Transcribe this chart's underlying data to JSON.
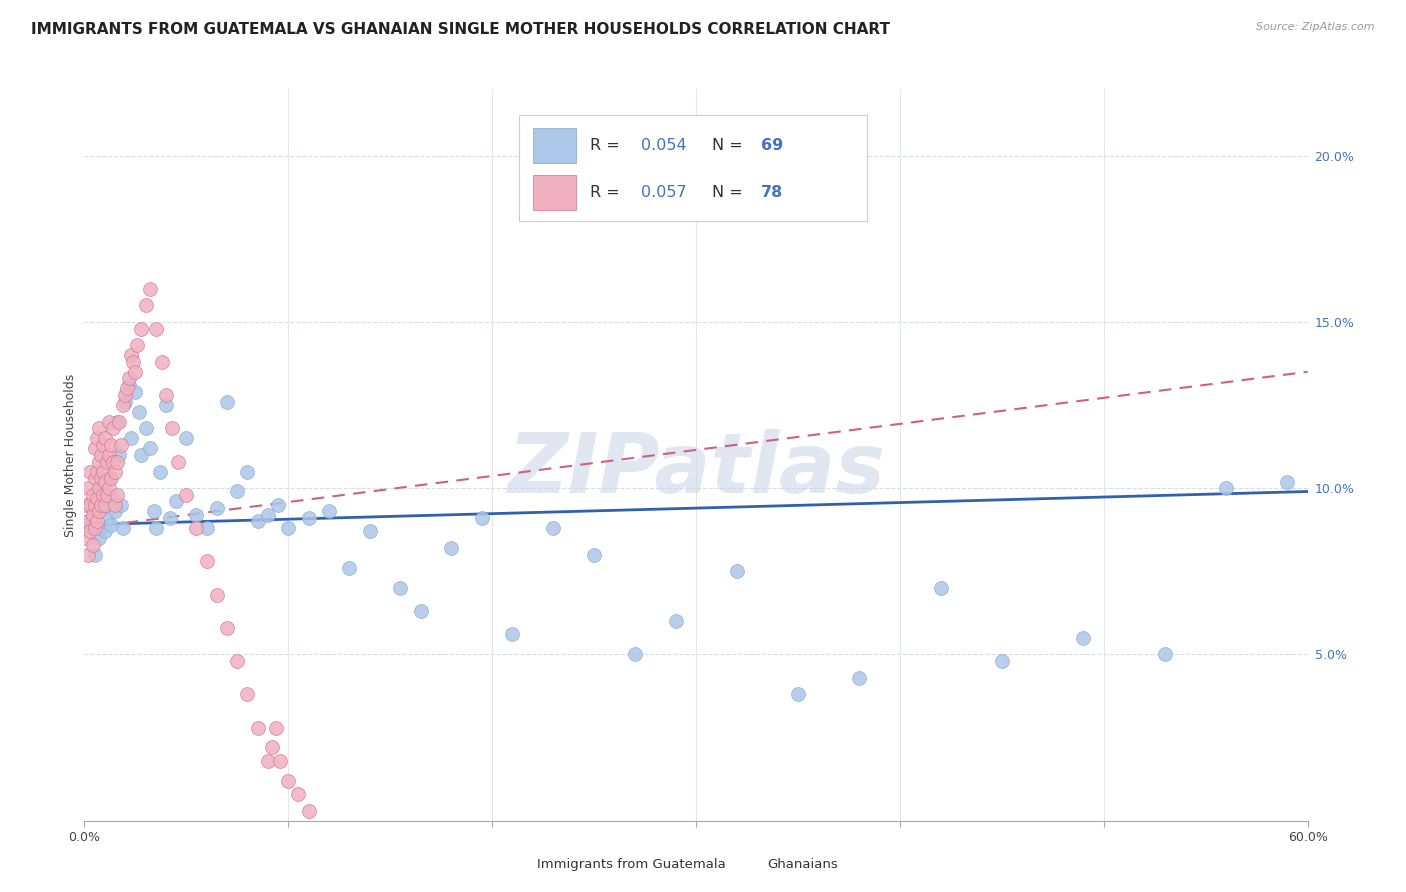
{
  "title": "IMMIGRANTS FROM GUATEMALA VS GHANAIAN SINGLE MOTHER HOUSEHOLDS CORRELATION CHART",
  "source": "Source: ZipAtlas.com",
  "ylabel": "Single Mother Households",
  "watermark": "ZIPatlas",
  "series": [
    {
      "name": "Immigrants from Guatemala",
      "color": "#aec6e8",
      "edge_color": "#7aaad0",
      "R": 0.054,
      "N": 69,
      "line_color": "#3060b0",
      "line_style": "solid",
      "x": [
        0.002,
        0.003,
        0.004,
        0.005,
        0.005,
        0.006,
        0.007,
        0.007,
        0.008,
        0.008,
        0.009,
        0.01,
        0.01,
        0.011,
        0.012,
        0.013,
        0.014,
        0.015,
        0.016,
        0.017,
        0.018,
        0.019,
        0.02,
        0.022,
        0.023,
        0.025,
        0.027,
        0.028,
        0.03,
        0.032,
        0.034,
        0.035,
        0.037,
        0.04,
        0.042,
        0.045,
        0.05,
        0.055,
        0.06,
        0.065,
        0.07,
        0.075,
        0.08,
        0.085,
        0.09,
        0.095,
        0.1,
        0.11,
        0.12,
        0.13,
        0.14,
        0.155,
        0.165,
        0.18,
        0.195,
        0.21,
        0.23,
        0.25,
        0.27,
        0.29,
        0.32,
        0.35,
        0.38,
        0.42,
        0.45,
        0.49,
        0.53,
        0.56,
        0.59
      ],
      "y": [
        0.09,
        0.088,
        0.095,
        0.08,
        0.092,
        0.096,
        0.085,
        0.093,
        0.088,
        0.1,
        0.094,
        0.087,
        0.098,
        0.091,
        0.103,
        0.089,
        0.097,
        0.093,
        0.12,
        0.11,
        0.095,
        0.088,
        0.126,
        0.131,
        0.115,
        0.129,
        0.123,
        0.11,
        0.118,
        0.112,
        0.093,
        0.088,
        0.105,
        0.125,
        0.091,
        0.096,
        0.115,
        0.092,
        0.088,
        0.094,
        0.126,
        0.099,
        0.105,
        0.09,
        0.092,
        0.095,
        0.088,
        0.091,
        0.093,
        0.076,
        0.087,
        0.07,
        0.063,
        0.082,
        0.091,
        0.056,
        0.088,
        0.08,
        0.05,
        0.06,
        0.075,
        0.038,
        0.043,
        0.07,
        0.048,
        0.055,
        0.05,
        0.1,
        0.102
      ]
    },
    {
      "name": "Ghanaians",
      "color": "#f0b0c0",
      "edge_color": "#d07090",
      "R": 0.057,
      "N": 78,
      "line_color": "#d06080",
      "line_style": "dashed",
      "x": [
        0.001,
        0.001,
        0.002,
        0.002,
        0.002,
        0.003,
        0.003,
        0.003,
        0.004,
        0.004,
        0.004,
        0.005,
        0.005,
        0.005,
        0.005,
        0.006,
        0.006,
        0.006,
        0.006,
        0.007,
        0.007,
        0.007,
        0.007,
        0.008,
        0.008,
        0.008,
        0.009,
        0.009,
        0.009,
        0.01,
        0.01,
        0.01,
        0.011,
        0.011,
        0.012,
        0.012,
        0.012,
        0.013,
        0.013,
        0.014,
        0.014,
        0.015,
        0.015,
        0.016,
        0.016,
        0.017,
        0.018,
        0.019,
        0.02,
        0.021,
        0.022,
        0.023,
        0.024,
        0.025,
        0.026,
        0.028,
        0.03,
        0.032,
        0.035,
        0.038,
        0.04,
        0.043,
        0.046,
        0.05,
        0.055,
        0.06,
        0.065,
        0.07,
        0.075,
        0.08,
        0.085,
        0.09,
        0.092,
        0.094,
        0.096,
        0.1,
        0.105,
        0.11
      ],
      "y": [
        0.095,
        0.085,
        0.1,
        0.09,
        0.08,
        0.095,
        0.087,
        0.105,
        0.092,
        0.083,
        0.098,
        0.088,
        0.095,
        0.103,
        0.112,
        0.09,
        0.097,
        0.105,
        0.115,
        0.093,
        0.1,
        0.108,
        0.118,
        0.095,
        0.103,
        0.11,
        0.098,
        0.105,
        0.113,
        0.095,
        0.102,
        0.115,
        0.098,
        0.108,
        0.1,
        0.11,
        0.12,
        0.103,
        0.113,
        0.108,
        0.118,
        0.095,
        0.105,
        0.098,
        0.108,
        0.12,
        0.113,
        0.125,
        0.128,
        0.13,
        0.133,
        0.14,
        0.138,
        0.135,
        0.143,
        0.148,
        0.155,
        0.16,
        0.148,
        0.138,
        0.128,
        0.118,
        0.108,
        0.098,
        0.088,
        0.078,
        0.068,
        0.058,
        0.048,
        0.038,
        0.028,
        0.018,
        0.022,
        0.028,
        0.018,
        0.012,
        0.008,
        0.003
      ]
    }
  ],
  "trend_lines": [
    {
      "x_start": 0.0,
      "y_start": 0.091,
      "x_end": 0.6,
      "y_end": 0.1
    },
    {
      "x_start": 0.0,
      "y_start": 0.088,
      "x_end": 0.15,
      "y_end": 0.1
    }
  ],
  "xlim": [
    0.0,
    0.6
  ],
  "ylim": [
    0.0,
    0.22
  ],
  "yticks": [
    0.05,
    0.1,
    0.15,
    0.2
  ],
  "ytick_labels": [
    "5.0%",
    "10.0%",
    "15.0%",
    "20.0%"
  ],
  "xticks": [
    0.0,
    0.1,
    0.2,
    0.3,
    0.4,
    0.5,
    0.6
  ],
  "xtick_labels_show": [
    "0.0%",
    "60.0%"
  ],
  "title_fontsize": 11,
  "axis_label_fontsize": 9,
  "tick_fontsize": 9,
  "legend_fontsize": 11,
  "watermark_color": "#ccd8e8",
  "watermark_fontsize": 60,
  "background_color": "#ffffff",
  "grid_color": "#d8dce8",
  "source_color": "#999999",
  "legend_R_color": "#4472c4",
  "legend_N_color": "#4472c4"
}
